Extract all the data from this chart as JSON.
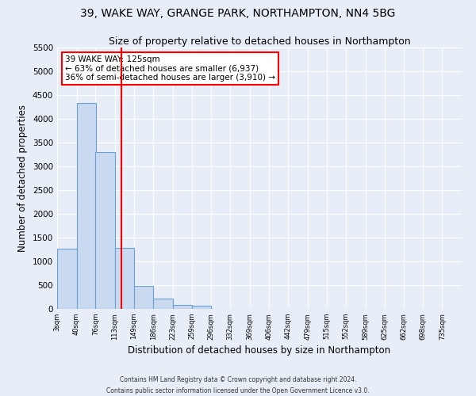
{
  "title1": "39, WAKE WAY, GRANGE PARK, NORTHAMPTON, NN4 5BG",
  "title2": "Size of property relative to detached houses in Northampton",
  "xlabel": "Distribution of detached houses by size in Northampton",
  "ylabel": "Number of detached properties",
  "footnote1": "Contains HM Land Registry data © Crown copyright and database right 2024.",
  "footnote2": "Contains public sector information licensed under the Open Government Licence v3.0.",
  "annotation_line1": "39 WAKE WAY: 125sqm",
  "annotation_line2": "← 63% of detached houses are smaller (6,937)",
  "annotation_line3": "36% of semi-detached houses are larger (3,910) →",
  "bar_color": "#c9d9f0",
  "bar_edge_color": "#6aa0d4",
  "property_line_x": 125,
  "property_line_color": "red",
  "categories": [
    "3sqm",
    "40sqm",
    "76sqm",
    "113sqm",
    "149sqm",
    "186sqm",
    "223sqm",
    "259sqm",
    "296sqm",
    "332sqm",
    "369sqm",
    "406sqm",
    "442sqm",
    "479sqm",
    "515sqm",
    "552sqm",
    "589sqm",
    "625sqm",
    "662sqm",
    "698sqm",
    "735sqm"
  ],
  "bin_edges": [
    3,
    40,
    76,
    113,
    149,
    186,
    223,
    259,
    296,
    332,
    369,
    406,
    442,
    479,
    515,
    552,
    589,
    625,
    662,
    698,
    735
  ],
  "bin_width": 37,
  "values": [
    1270,
    4330,
    3300,
    1280,
    490,
    210,
    90,
    60,
    0,
    0,
    0,
    0,
    0,
    0,
    0,
    0,
    0,
    0,
    0,
    0
  ],
  "ylim": [
    0,
    5500
  ],
  "yticks": [
    0,
    500,
    1000,
    1500,
    2000,
    2500,
    3000,
    3500,
    4000,
    4500,
    5000,
    5500
  ],
  "background_color": "#e8eef8",
  "annotation_box_color": "white",
  "annotation_box_edgecolor": "red",
  "title1_fontsize": 10,
  "title2_fontsize": 9,
  "xlabel_fontsize": 8.5,
  "ylabel_fontsize": 8.5,
  "annotation_fontsize": 7.5
}
